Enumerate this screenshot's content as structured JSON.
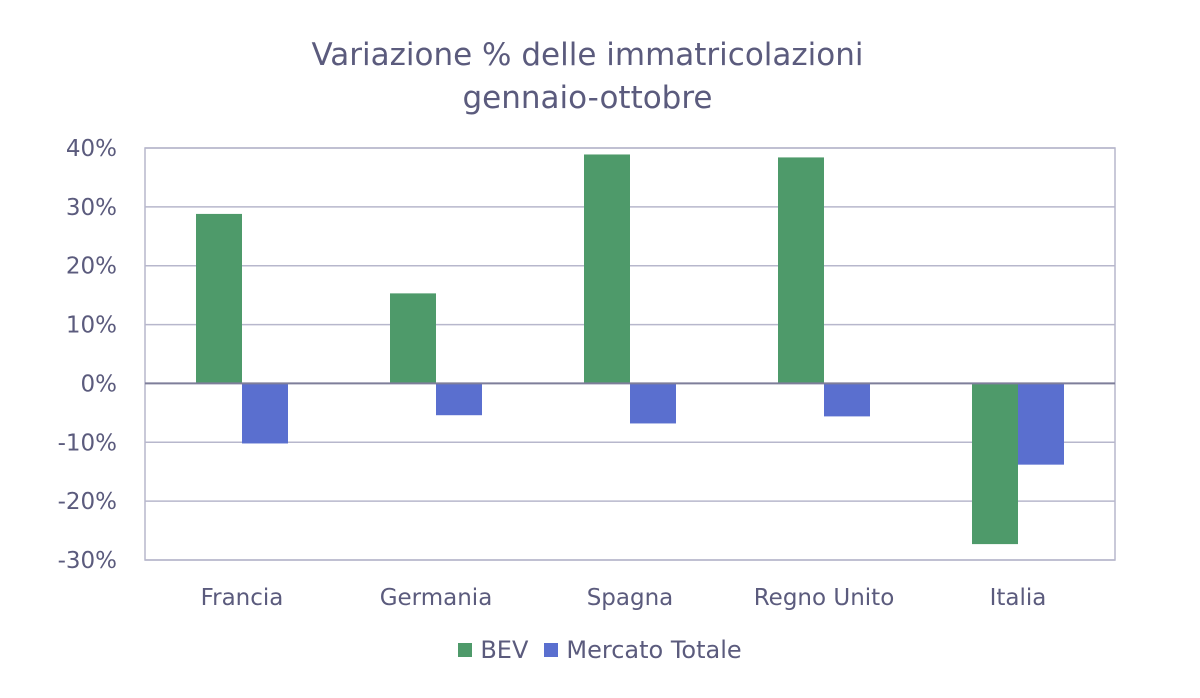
{
  "chart_data": {
    "type": "bar",
    "title_line1": "Variazione % delle immatricolazioni",
    "title_line2": "gennaio-ottobre",
    "categories": [
      "Francia",
      "Germania",
      "Spagna",
      "Regno Unito",
      "Italia"
    ],
    "series": [
      {
        "name": "BEV",
        "color": "#4e9a6a",
        "values": [
          28.8,
          15.3,
          38.9,
          38.4,
          -27.3
        ]
      },
      {
        "name": "Mercato Totale",
        "color": "#5a6fcf",
        "values": [
          -10.2,
          -5.4,
          -6.8,
          -5.6,
          -13.8
        ]
      }
    ],
    "ylim": [
      -30,
      40
    ],
    "yticks": [
      "-30%",
      "-20%",
      "-10%",
      "0%",
      "10%",
      "20%",
      "30%",
      "40%"
    ],
    "grid": true,
    "legend_position": "bottom"
  }
}
